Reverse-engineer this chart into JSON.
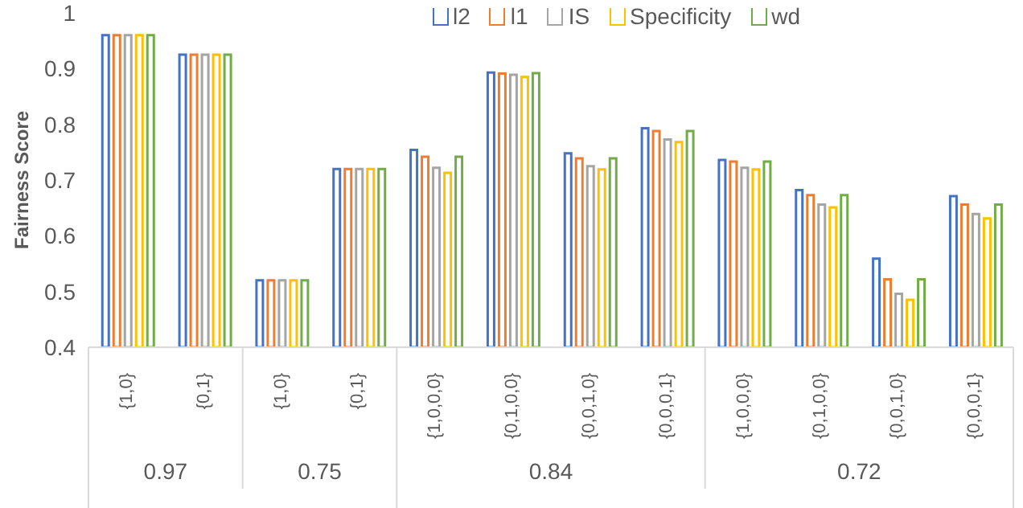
{
  "chart_data": {
    "type": "bar",
    "ylabel": "Fairness Score",
    "categories": [
      "{1,0}",
      "{0,1}",
      "{1,0}",
      "{0,1}",
      "{1,0,0,0}",
      "{0,1,0,0}",
      "{0,0,1,0}",
      "{0,0,0,1}",
      "{1,0,0,0}",
      "{0,1,0,0}",
      "{0,0,1,0}",
      "{0,0,0,1}"
    ],
    "series": [
      {
        "name": "l2",
        "color": "#4472c4",
        "values": [
          0.96,
          0.925,
          0.52,
          0.72,
          0.754,
          0.893,
          0.748,
          0.793,
          0.736,
          0.682,
          0.559,
          0.671
        ]
      },
      {
        "name": "l1",
        "color": "#ed7d31",
        "values": [
          0.96,
          0.925,
          0.52,
          0.72,
          0.742,
          0.891,
          0.739,
          0.788,
          0.733,
          0.673,
          0.522,
          0.656
        ]
      },
      {
        "name": "IS",
        "color": "#a5a5a5",
        "values": [
          0.96,
          0.925,
          0.52,
          0.72,
          0.722,
          0.889,
          0.725,
          0.773,
          0.722,
          0.656,
          0.496,
          0.639
        ]
      },
      {
        "name": "Specificity",
        "color": "#ffc000",
        "values": [
          0.96,
          0.925,
          0.52,
          0.72,
          0.713,
          0.885,
          0.719,
          0.768,
          0.719,
          0.651,
          0.485,
          0.631
        ]
      },
      {
        "name": "wd",
        "color": "#70ad47",
        "values": [
          0.96,
          0.925,
          0.52,
          0.72,
          0.742,
          0.892,
          0.739,
          0.788,
          0.733,
          0.673,
          0.522,
          0.656
        ]
      }
    ],
    "annotations": [
      "0.97",
      "0.75",
      "0.84",
      "0.72"
    ],
    "ylim": [
      0.4,
      1
    ],
    "yticks": [
      0.4,
      0.5,
      0.6,
      0.7,
      0.8,
      0.9,
      1
    ],
    "grid": false,
    "legend": "top"
  }
}
